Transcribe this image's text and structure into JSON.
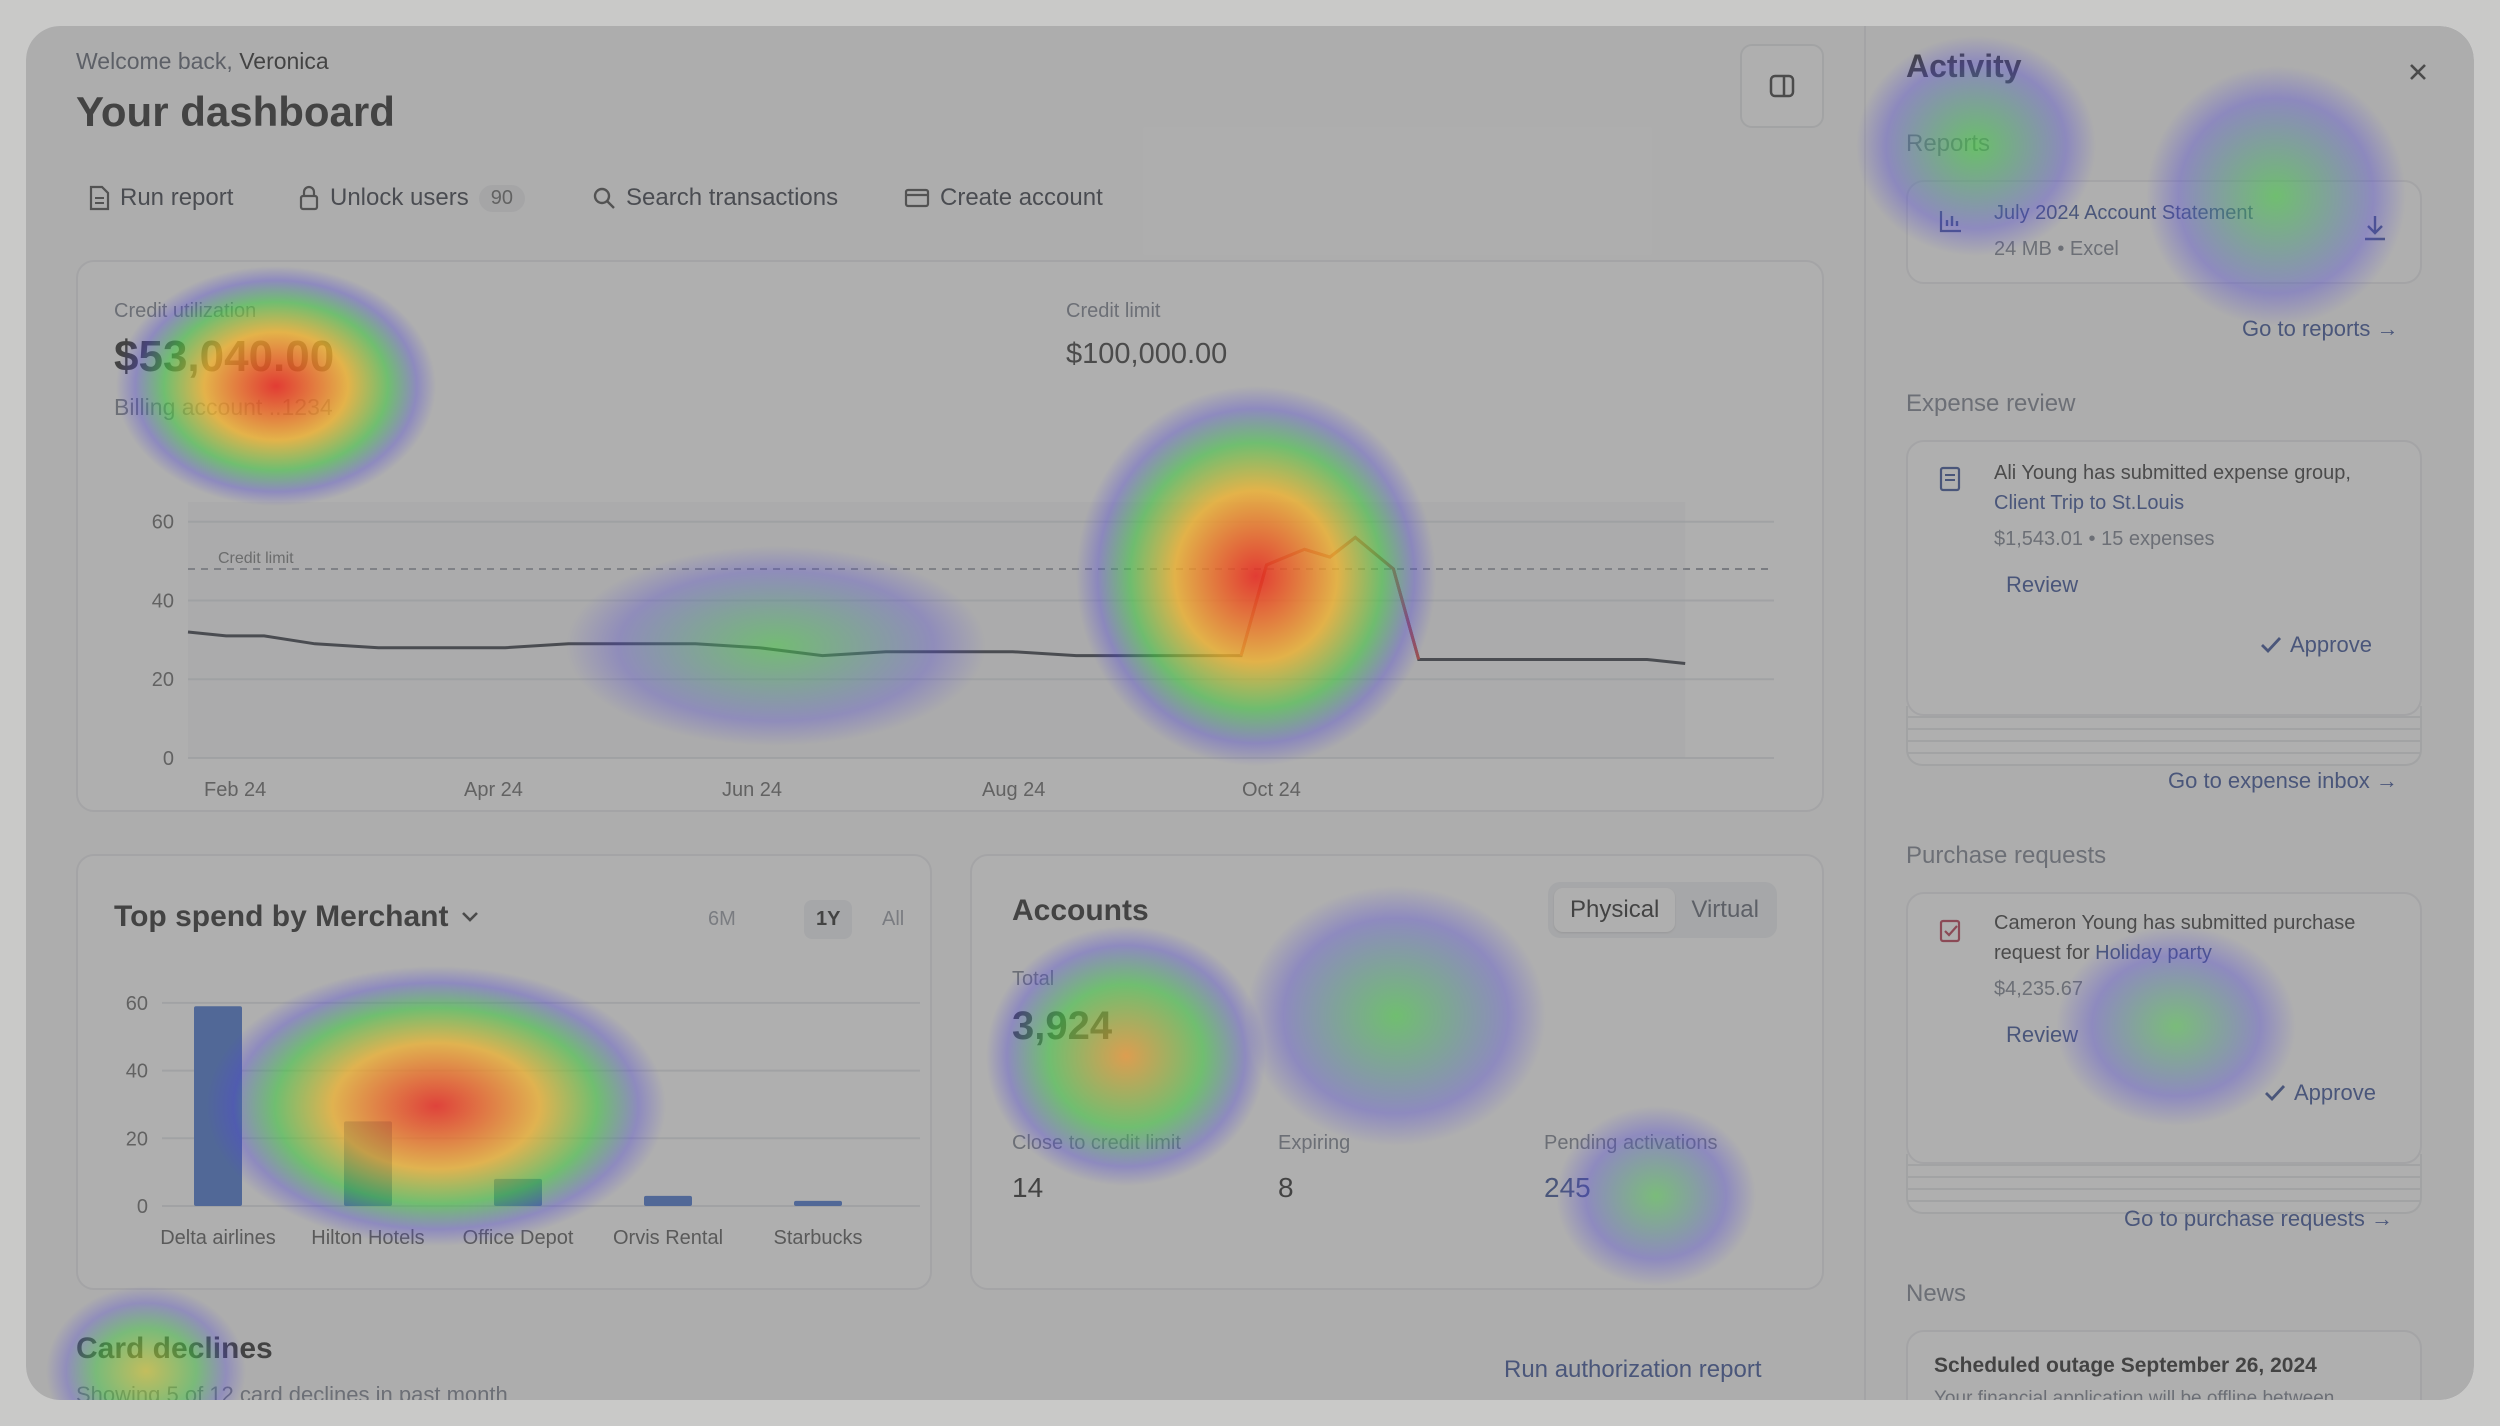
{
  "header": {
    "welcome_prefix": "Welcome back,",
    "user_name": "Veronica",
    "title": "Your dashboard"
  },
  "actions": {
    "run_report": "Run report",
    "unlock_users": "Unlock users",
    "unlock_users_count": "90",
    "search_transactions": "Search transactions",
    "create_account": "Create account"
  },
  "credit_panel": {
    "utilization_label": "Credit utilization",
    "utilization_value": "$53,040.00",
    "billing_account": "Billing account ..1234",
    "limit_label": "Credit limit",
    "limit_value": "$100,000.00",
    "limit_line_label": "Credit limit"
  },
  "chart_data": [
    {
      "type": "line",
      "x_ticks": [
        "Feb 24",
        "Apr 24",
        "Jun 24",
        "Aug 24",
        "Oct 24"
      ],
      "y_ticks": [
        0,
        20,
        40,
        60
      ],
      "ylim": [
        0,
        65
      ],
      "reference_line": {
        "label": "Credit limit",
        "value": 48
      },
      "series": [
        {
          "values_month_index": [
            [
              0,
              32
            ],
            [
              0.3,
              31
            ],
            [
              0.6,
              31
            ],
            [
              1.0,
              29
            ],
            [
              1.5,
              28
            ],
            [
              2.0,
              28
            ],
            [
              2.5,
              28
            ],
            [
              3.0,
              29
            ],
            [
              3.5,
              29
            ],
            [
              4.0,
              29
            ],
            [
              4.5,
              28
            ],
            [
              5.0,
              26
            ],
            [
              5.5,
              27
            ],
            [
              6.0,
              27
            ],
            [
              6.5,
              27
            ],
            [
              7.0,
              26
            ],
            [
              7.5,
              26
            ],
            [
              8.0,
              26
            ],
            [
              8.3,
              26
            ],
            [
              8.5,
              49
            ],
            [
              8.8,
              53
            ],
            [
              9.0,
              51
            ],
            [
              9.2,
              56
            ],
            [
              9.5,
              48
            ],
            [
              9.7,
              25
            ],
            [
              10.0,
              25
            ],
            [
              10.5,
              25
            ],
            [
              11.0,
              25
            ],
            [
              11.5,
              25
            ],
            [
              11.8,
              24
            ]
          ]
        }
      ],
      "grid": true
    },
    {
      "type": "bar",
      "title": "Top spend by Merchant",
      "categories": [
        "Delta airlines",
        "Hilton Hotels",
        "Office Depot",
        "Orvis Rental",
        "Starbucks"
      ],
      "values": [
        59,
        25,
        8,
        3,
        1.5
      ],
      "y_ticks": [
        0,
        20,
        40,
        60
      ],
      "ylim": [
        0,
        65
      ],
      "grid": true
    }
  ],
  "merchant_panel": {
    "title": "Top spend by Merchant",
    "ranges": [
      "6M",
      "1Y",
      "All"
    ],
    "selected_range": "1Y"
  },
  "accounts_panel": {
    "title": "Accounts",
    "toggle": [
      "Physical",
      "Virtual"
    ],
    "total_label": "Total",
    "total_value": "3,924",
    "stats": [
      {
        "label": "Close to credit limit",
        "value": "14"
      },
      {
        "label": "Expiring",
        "value": "8"
      },
      {
        "label": "Pending activations",
        "value": "245"
      }
    ]
  },
  "declines": {
    "title": "Card declines",
    "subtitle": "Showing 5 of 12 card declines in past month",
    "run_report": "Run authorization report"
  },
  "activity": {
    "title": "Activity",
    "reports_heading": "Reports",
    "report_name": "July 2024 Account Statement",
    "report_meta": "24 MB • Excel",
    "go_reports": "Go to reports →",
    "expense_heading": "Expense review",
    "expense_text_a": "Ali Young has submitted expense group,",
    "expense_link": "Client Trip to St.Louis",
    "expense_meta": "$1,543.01 • 15 expenses",
    "expense_review": "Review",
    "expense_approve": "Approve",
    "go_expense": "Go to expense inbox →",
    "purchase_heading": "Purchase requests",
    "purchase_text_a": "Cameron Young has submitted purchase",
    "purchase_text_b": "request for",
    "purchase_link": "Holiday party",
    "purchase_meta": "$4,235.67",
    "purchase_review": "Review",
    "purchase_approve": "Approve",
    "go_purchase": "Go to purchase requests →",
    "news_heading": "News",
    "news_title": "Scheduled outage September 26, 2024",
    "news_text": "Your financial application will be offline between"
  },
  "colors": {
    "accent": "#1f3a8a",
    "line": "#1f2430",
    "line_spike": "#d62f2f",
    "bar": "#2f63c9",
    "overlay": "#808080"
  }
}
